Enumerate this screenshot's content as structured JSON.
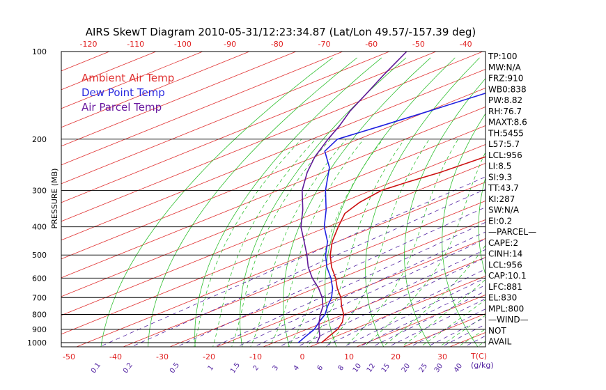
{
  "chart_data": {
    "type": "line",
    "title": "AIRS SkewT Diagram 2010-05-31/12:23:34.87 (Lat/Lon 49.57/-157.39 deg)",
    "ylabel": "PRESSURE (MB)",
    "top_temp_ticks": [
      "-120",
      "-110",
      "-100",
      "-90",
      "-80",
      "-70",
      "-60",
      "-50",
      "-40"
    ],
    "bottom_temp_ticks": [
      "-50",
      "-40",
      "-30",
      "-20",
      "-10",
      "0",
      "10",
      "20",
      "30"
    ],
    "temp_unit_label": "T(C)",
    "mixing_ratio_ticks": [
      "0.1",
      "0.2",
      "0.5",
      "1",
      "1.5",
      "2",
      "3",
      "4",
      "6",
      "8",
      "10",
      "12",
      "15",
      "20",
      "25",
      "30",
      "40"
    ],
    "mixing_unit_label": "(g/kg)",
    "pressure_levels": [
      {
        "p": 100,
        "label": "100"
      },
      {
        "p": 200,
        "label": "200"
      },
      {
        "p": 300,
        "label": "300"
      },
      {
        "p": 400,
        "label": "400"
      },
      {
        "p": 500,
        "label": "500"
      },
      {
        "p": 600,
        "label": "600"
      },
      {
        "p": 700,
        "label": "700"
      },
      {
        "p": 800,
        "label": "800"
      },
      {
        "p": 900,
        "label": "900"
      },
      {
        "p": 1000,
        "label": "1000"
      }
    ],
    "legend": [
      {
        "name": "Ambient Air Temp",
        "color": "#e03030"
      },
      {
        "name": "Dew Point Temp",
        "color": "#2a2ae0"
      },
      {
        "name": "Air Parcel Temp",
        "color": "#6a1aa0"
      }
    ],
    "series": [
      {
        "name": "Ambient Air Temp",
        "color": "#cc1010",
        "points": [
          [
            100,
            -56
          ],
          [
            110,
            -57.5
          ],
          [
            125,
            -60
          ],
          [
            140,
            -63
          ],
          [
            155,
            -64
          ],
          [
            170,
            -64
          ],
          [
            185,
            -63
          ],
          [
            200,
            -63
          ],
          [
            230,
            -64.5
          ],
          [
            260,
            -65.5
          ],
          [
            280,
            -67
          ],
          [
            300,
            -68
          ],
          [
            330,
            -66
          ],
          [
            360,
            -63
          ],
          [
            400,
            -57
          ],
          [
            450,
            -50
          ],
          [
            500,
            -43
          ],
          [
            550,
            -36
          ],
          [
            600,
            -29
          ],
          [
            650,
            -23
          ],
          [
            700,
            -17
          ],
          [
            750,
            -12
          ],
          [
            800,
            -7
          ],
          [
            850,
            -3
          ],
          [
            900,
            0
          ],
          [
            950,
            2
          ],
          [
            1000,
            4
          ]
        ]
      },
      {
        "name": "Dew Point Temp",
        "color": "#2020e0",
        "points": [
          [
            100,
            -93
          ],
          [
            120,
            -97
          ],
          [
            140,
            -100
          ],
          [
            160,
            -102
          ],
          [
            180,
            -104
          ],
          [
            200,
            -106
          ],
          [
            220,
            -102
          ],
          [
            250,
            -92
          ],
          [
            300,
            -80
          ],
          [
            350,
            -69
          ],
          [
            400,
            -60
          ],
          [
            450,
            -51
          ],
          [
            500,
            -44
          ],
          [
            550,
            -37
          ],
          [
            600,
            -30
          ],
          [
            650,
            -24
          ],
          [
            700,
            -19
          ],
          [
            750,
            -15
          ],
          [
            800,
            -11
          ],
          [
            850,
            -8
          ],
          [
            900,
            -5
          ],
          [
            950,
            -3
          ],
          [
            1000,
            -1
          ]
        ]
      },
      {
        "name": "Air Parcel Temp",
        "color": "#601898",
        "points": [
          [
            100,
            -140
          ],
          [
            120,
            -132
          ],
          [
            140,
            -125
          ],
          [
            160,
            -119
          ],
          [
            180,
            -113
          ],
          [
            200,
            -108
          ],
          [
            230,
            -101
          ],
          [
            260,
            -94
          ],
          [
            300,
            -85
          ],
          [
            350,
            -74
          ],
          [
            400,
            -65
          ],
          [
            450,
            -56
          ],
          [
            500,
            -48
          ],
          [
            550,
            -41
          ],
          [
            600,
            -34
          ],
          [
            650,
            -27
          ],
          [
            700,
            -21
          ],
          [
            750,
            -16
          ],
          [
            800,
            -12
          ],
          [
            850,
            -8
          ],
          [
            900,
            -4
          ],
          [
            950,
            0
          ],
          [
            1000,
            3
          ]
        ]
      }
    ],
    "ylim": [
      100,
      1000
    ],
    "xlim": [
      -50,
      40
    ],
    "grid": true
  },
  "side_panel": [
    "TP:100",
    "MW:N/A",
    "FRZ:910",
    "WB0:838",
    "PW:8.82",
    "RH:76.7",
    "MAXT:8.6",
    "TH:5455",
    "L57:5.7",
    "LCL:956",
    "LI:8.5",
    "SI:9.3",
    "TT:43.7",
    "KI:287",
    "SW:N/A",
    "EI:0.2",
    "—PARCEL—",
    "CAPE:2",
    "CINH:14",
    "LCL:956",
    "CAP:10.1",
    "LFC:881",
    "EL:830",
    "MPL:800",
    "—WIND—",
    "NOT",
    "AVAIL"
  ],
  "colors": {
    "isotherm": "#e03030",
    "dry_adiabat": "#30c030",
    "moist_adiabat": "#30c030",
    "mixing_ratio": "#5020a0",
    "isobar": "#000000",
    "axis_label": "#e02020"
  }
}
